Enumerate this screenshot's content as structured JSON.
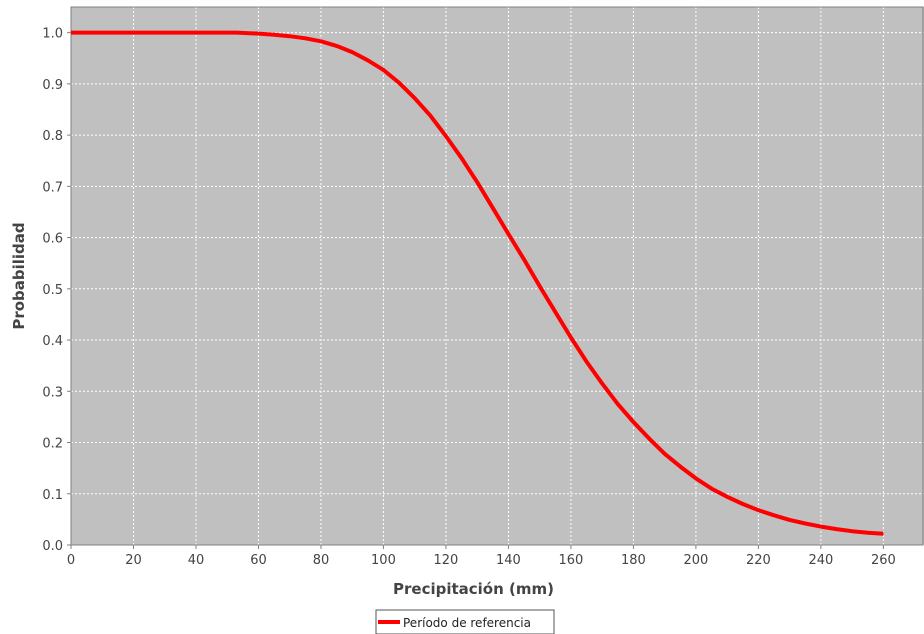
{
  "chart_data": {
    "type": "line",
    "title": "",
    "xlabel": "Precipitación (mm)",
    "ylabel": "Probabilidad",
    "xlim": [
      0,
      273
    ],
    "ylim": [
      0,
      1.05
    ],
    "x_ticks": [
      0,
      20,
      40,
      60,
      80,
      100,
      120,
      140,
      160,
      180,
      200,
      220,
      240,
      260
    ],
    "y_ticks": [
      0.0,
      0.1,
      0.2,
      0.3,
      0.4,
      0.5,
      0.6,
      0.7,
      0.8,
      0.9,
      1.0
    ],
    "y_tick_labels": [
      "0.0",
      "0.1",
      "0.2",
      "0.3",
      "0.4",
      "0.5",
      "0.6",
      "0.7",
      "0.8",
      "0.9",
      "1.0"
    ],
    "grid": true,
    "background_color": "#c0c0c0",
    "legend_position": "bottom-center",
    "series": [
      {
        "name": "Período de referencia",
        "color": "#ff0000",
        "x": [
          0,
          53,
          60,
          65,
          70,
          75,
          80,
          85,
          90,
          95,
          100,
          105,
          110,
          115,
          120,
          125,
          130,
          135,
          140,
          145,
          150,
          155,
          160,
          165,
          170,
          175,
          180,
          185,
          190,
          195,
          200,
          205,
          210,
          215,
          220,
          225,
          230,
          235,
          240,
          245,
          250,
          255,
          260
        ],
        "y": [
          1.0,
          1.0,
          0.998,
          0.996,
          0.993,
          0.989,
          0.983,
          0.974,
          0.962,
          0.946,
          0.927,
          0.902,
          0.872,
          0.838,
          0.798,
          0.755,
          0.708,
          0.658,
          0.607,
          0.557,
          0.505,
          0.455,
          0.405,
          0.358,
          0.315,
          0.275,
          0.24,
          0.208,
          0.178,
          0.153,
          0.13,
          0.11,
          0.094,
          0.08,
          0.068,
          0.058,
          0.049,
          0.042,
          0.036,
          0.031,
          0.027,
          0.024,
          0.022
        ]
      }
    ]
  }
}
